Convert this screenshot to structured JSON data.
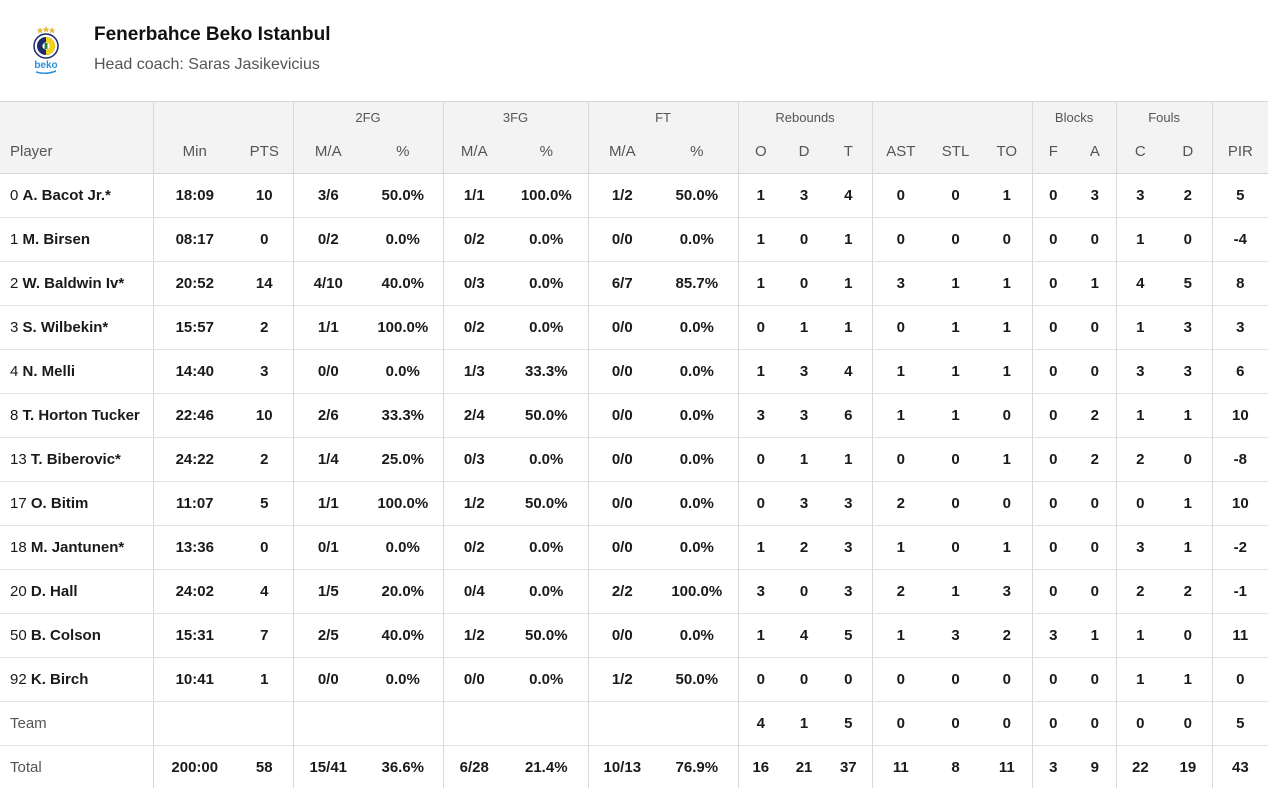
{
  "team": {
    "name": "Fenerbahce Beko Istanbul",
    "coach": "Head coach: Saras Jasikevicius",
    "logo_text": "beko",
    "colors": {
      "navy": "#1b2a6b",
      "yellow": "#f5d21a",
      "beko_blue": "#2a8fd6",
      "star": "#e6b72e"
    }
  },
  "groups": [
    "2FG",
    "3FG",
    "FT",
    "Rebounds",
    "Blocks",
    "Fouls"
  ],
  "columns": [
    "Player",
    "Min",
    "PTS",
    "M/A",
    "%",
    "M/A",
    "%",
    "M/A",
    "%",
    "O",
    "D",
    "T",
    "AST",
    "STL",
    "TO",
    "F",
    "A",
    "C",
    "D",
    "PIR"
  ],
  "players": [
    {
      "num": "0",
      "name": "A. Bacot Jr.*",
      "stats": [
        "18:09",
        "10",
        "3/6",
        "50.0%",
        "1/1",
        "100.0%",
        "1/2",
        "50.0%",
        "1",
        "3",
        "4",
        "0",
        "0",
        "1",
        "0",
        "3",
        "3",
        "2",
        "5"
      ]
    },
    {
      "num": "1",
      "name": "M. Birsen",
      "stats": [
        "08:17",
        "0",
        "0/2",
        "0.0%",
        "0/2",
        "0.0%",
        "0/0",
        "0.0%",
        "1",
        "0",
        "1",
        "0",
        "0",
        "0",
        "0",
        "0",
        "1",
        "0",
        "-4"
      ]
    },
    {
      "num": "2",
      "name": "W. Baldwin Iv*",
      "stats": [
        "20:52",
        "14",
        "4/10",
        "40.0%",
        "0/3",
        "0.0%",
        "6/7",
        "85.7%",
        "1",
        "0",
        "1",
        "3",
        "1",
        "1",
        "0",
        "1",
        "4",
        "5",
        "8"
      ]
    },
    {
      "num": "3",
      "name": "S. Wilbekin*",
      "stats": [
        "15:57",
        "2",
        "1/1",
        "100.0%",
        "0/2",
        "0.0%",
        "0/0",
        "0.0%",
        "0",
        "1",
        "1",
        "0",
        "1",
        "1",
        "0",
        "0",
        "1",
        "3",
        "3"
      ]
    },
    {
      "num": "4",
      "name": "N. Melli",
      "stats": [
        "14:40",
        "3",
        "0/0",
        "0.0%",
        "1/3",
        "33.3%",
        "0/0",
        "0.0%",
        "1",
        "3",
        "4",
        "1",
        "1",
        "1",
        "0",
        "0",
        "3",
        "3",
        "6"
      ]
    },
    {
      "num": "8",
      "name": "T. Horton Tucker",
      "stats": [
        "22:46",
        "10",
        "2/6",
        "33.3%",
        "2/4",
        "50.0%",
        "0/0",
        "0.0%",
        "3",
        "3",
        "6",
        "1",
        "1",
        "0",
        "0",
        "2",
        "1",
        "1",
        "10"
      ]
    },
    {
      "num": "13",
      "name": "T. Biberovic*",
      "stats": [
        "24:22",
        "2",
        "1/4",
        "25.0%",
        "0/3",
        "0.0%",
        "0/0",
        "0.0%",
        "0",
        "1",
        "1",
        "0",
        "0",
        "1",
        "0",
        "2",
        "2",
        "0",
        "-8"
      ]
    },
    {
      "num": "17",
      "name": "O. Bitim",
      "stats": [
        "11:07",
        "5",
        "1/1",
        "100.0%",
        "1/2",
        "50.0%",
        "0/0",
        "0.0%",
        "0",
        "3",
        "3",
        "2",
        "0",
        "0",
        "0",
        "0",
        "0",
        "1",
        "10"
      ]
    },
    {
      "num": "18",
      "name": "M. Jantunen*",
      "stats": [
        "13:36",
        "0",
        "0/1",
        "0.0%",
        "0/2",
        "0.0%",
        "0/0",
        "0.0%",
        "1",
        "2",
        "3",
        "1",
        "0",
        "1",
        "0",
        "0",
        "3",
        "1",
        "-2"
      ]
    },
    {
      "num": "20",
      "name": "D. Hall",
      "stats": [
        "24:02",
        "4",
        "1/5",
        "20.0%",
        "0/4",
        "0.0%",
        "2/2",
        "100.0%",
        "3",
        "0",
        "3",
        "2",
        "1",
        "3",
        "0",
        "0",
        "2",
        "2",
        "-1"
      ]
    },
    {
      "num": "50",
      "name": "B. Colson",
      "stats": [
        "15:31",
        "7",
        "2/5",
        "40.0%",
        "1/2",
        "50.0%",
        "0/0",
        "0.0%",
        "1",
        "4",
        "5",
        "1",
        "3",
        "2",
        "3",
        "1",
        "1",
        "0",
        "11"
      ]
    },
    {
      "num": "92",
      "name": "K. Birch",
      "stats": [
        "10:41",
        "1",
        "0/0",
        "0.0%",
        "0/0",
        "0.0%",
        "1/2",
        "50.0%",
        "0",
        "0",
        "0",
        "0",
        "0",
        "0",
        "0",
        "0",
        "1",
        "1",
        "0"
      ]
    }
  ],
  "team_row": {
    "label": "Team",
    "stats": [
      "",
      "",
      "",
      "",
      "",
      "",
      "",
      "",
      "4",
      "1",
      "5",
      "0",
      "0",
      "0",
      "0",
      "0",
      "0",
      "0",
      "5"
    ]
  },
  "total_row": {
    "label": "Total",
    "stats": [
      "200:00",
      "58",
      "15/41",
      "36.6%",
      "6/28",
      "21.4%",
      "10/13",
      "76.9%",
      "16",
      "21",
      "37",
      "11",
      "8",
      "11",
      "3",
      "9",
      "22",
      "19",
      "43"
    ]
  }
}
